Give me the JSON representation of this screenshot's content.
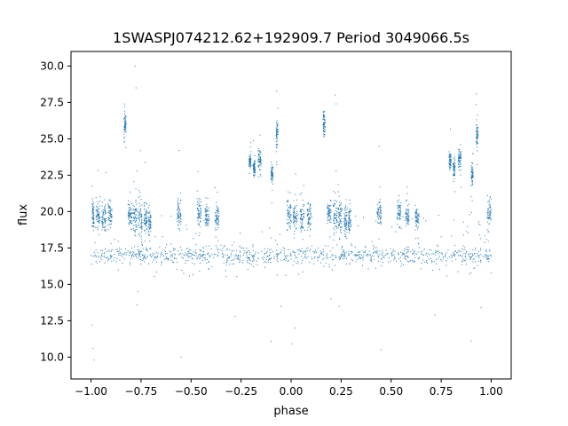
{
  "chart_data": {
    "type": "scatter",
    "title": "1SWASPJ074212.62+192909.7 Period 3049066.5s",
    "xlabel": "phase",
    "ylabel": "flux",
    "xlim": [
      -1.1,
      1.1
    ],
    "ylim": [
      8.5,
      31.0
    ],
    "x_ticks": [
      -1.0,
      -0.75,
      -0.5,
      -0.25,
      0.0,
      0.25,
      0.5,
      0.75,
      1.0
    ],
    "x_tick_labels": [
      "−1.00",
      "−0.75",
      "−0.50",
      "−0.25",
      "0.00",
      "0.25",
      "0.50",
      "0.75",
      "1.00"
    ],
    "y_ticks": [
      10.0,
      12.5,
      15.0,
      17.5,
      20.0,
      22.5,
      25.0,
      27.5,
      30.0
    ],
    "y_tick_labels": [
      "10.0",
      "12.5",
      "15.0",
      "17.5",
      "20.0",
      "22.5",
      "25.0",
      "27.5",
      "30.0"
    ],
    "grid": false,
    "legend": "none",
    "marker_color": "#1f77b4",
    "series": [
      {
        "clusters": [
          {
            "x": [
              -0.995,
              -0.985
            ],
            "y_center": 19.7,
            "y_spread": 0.9
          },
          {
            "x": [
              -0.975,
              -0.955
            ],
            "y_center": 19.8,
            "y_spread": 0.8
          },
          {
            "x": [
              -0.945,
              -0.925
            ],
            "y_center": 19.7,
            "y_spread": 0.9
          },
          {
            "x": [
              -0.915,
              -0.895
            ],
            "y_center": 19.8,
            "y_spread": 0.9
          },
          {
            "x": [
              -0.835,
              -0.825
            ],
            "y_center": 26.0,
            "y_spread": 0.9
          },
          {
            "x": [
              -0.815,
              -0.795
            ],
            "y_center": 19.8,
            "y_spread": 0.8
          },
          {
            "x": [
              -0.79,
              -0.77
            ],
            "y_center": 19.6,
            "y_spread": 1.2
          },
          {
            "x": [
              -0.765,
              -0.745
            ],
            "y_center": 19.5,
            "y_spread": 1.4
          },
          {
            "x": [
              -0.735,
              -0.72
            ],
            "y_center": 19.4,
            "y_spread": 1.0
          },
          {
            "x": [
              -0.715,
              -0.7
            ],
            "y_center": 19.3,
            "y_spread": 0.9
          },
          {
            "x": [
              -0.57,
              -0.55
            ],
            "y_center": 19.9,
            "y_spread": 0.9
          },
          {
            "x": [
              -0.47,
              -0.45
            ],
            "y_center": 19.9,
            "y_spread": 0.8
          },
          {
            "x": [
              -0.43,
              -0.41
            ],
            "y_center": 19.7,
            "y_spread": 0.7
          },
          {
            "x": [
              -0.38,
              -0.36
            ],
            "y_center": 19.6,
            "y_spread": 0.7
          },
          {
            "x": [
              -0.21,
              -0.2
            ],
            "y_center": 23.5,
            "y_spread": 0.5
          },
          {
            "x": [
              -0.19,
              -0.18
            ],
            "y_center": 23.0,
            "y_spread": 0.6
          },
          {
            "x": [
              -0.165,
              -0.15
            ],
            "y_center": 23.6,
            "y_spread": 0.7
          },
          {
            "x": [
              -0.1,
              -0.09
            ],
            "y_center": 22.6,
            "y_spread": 0.7
          },
          {
            "x": [
              -0.075,
              -0.065
            ],
            "y_center": 25.3,
            "y_spread": 0.9
          },
          {
            "x": [
              -0.02,
              0.0
            ],
            "y_center": 19.9,
            "y_spread": 1.0
          },
          {
            "x": [
              0.01,
              0.03
            ],
            "y_center": 19.6,
            "y_spread": 0.9
          },
          {
            "x": [
              0.045,
              0.065
            ],
            "y_center": 19.7,
            "y_spread": 0.9
          },
          {
            "x": [
              0.08,
              0.1
            ],
            "y_center": 19.8,
            "y_spread": 0.9
          },
          {
            "x": [
              0.16,
              0.17
            ],
            "y_center": 26.0,
            "y_spread": 0.9
          },
          {
            "x": [
              0.18,
              0.2
            ],
            "y_center": 19.8,
            "y_spread": 0.8
          },
          {
            "x": [
              0.21,
              0.23
            ],
            "y_center": 19.6,
            "y_spread": 1.2
          },
          {
            "x": [
              0.235,
              0.255
            ],
            "y_center": 19.5,
            "y_spread": 1.4
          },
          {
            "x": [
              0.265,
              0.28
            ],
            "y_center": 19.4,
            "y_spread": 1.0
          },
          {
            "x": [
              0.285,
              0.3
            ],
            "y_center": 19.3,
            "y_spread": 0.9
          },
          {
            "x": [
              0.43,
              0.45
            ],
            "y_center": 19.9,
            "y_spread": 0.9
          },
          {
            "x": [
              0.53,
              0.55
            ],
            "y_center": 19.9,
            "y_spread": 0.8
          },
          {
            "x": [
              0.57,
              0.59
            ],
            "y_center": 19.7,
            "y_spread": 0.7
          },
          {
            "x": [
              0.62,
              0.64
            ],
            "y_center": 19.6,
            "y_spread": 0.7
          },
          {
            "x": [
              0.79,
              0.8
            ],
            "y_center": 23.5,
            "y_spread": 0.5
          },
          {
            "x": [
              0.81,
              0.82
            ],
            "y_center": 23.0,
            "y_spread": 0.6
          },
          {
            "x": [
              0.835,
              0.85
            ],
            "y_center": 23.6,
            "y_spread": 0.7
          },
          {
            "x": [
              0.9,
              0.91
            ],
            "y_center": 22.6,
            "y_spread": 0.7
          },
          {
            "x": [
              0.925,
              0.935
            ],
            "y_center": 25.3,
            "y_spread": 0.9
          },
          {
            "x": [
              0.98,
              1.0
            ],
            "y_center": 19.9,
            "y_spread": 1.0
          }
        ],
        "baseline_band": {
          "x": [
            -1.0,
            1.0
          ],
          "y_center": 17.0,
          "y_spread": 0.6
        },
        "outlier_points": [
          {
            "x": -0.995,
            "y": 12.2
          },
          {
            "x": -0.99,
            "y": 10.6
          },
          {
            "x": -0.985,
            "y": 9.8
          },
          {
            "x": -0.78,
            "y": 30.0
          },
          {
            "x": -0.775,
            "y": 28.5
          },
          {
            "x": -0.77,
            "y": 13.6
          },
          {
            "x": -0.765,
            "y": 14.5
          },
          {
            "x": -0.56,
            "y": 24.2
          },
          {
            "x": -0.55,
            "y": 10.0
          },
          {
            "x": -0.28,
            "y": 12.8
          },
          {
            "x": -0.1,
            "y": 11.1
          },
          {
            "x": -0.05,
            "y": 13.5
          },
          {
            "x": 0.005,
            "y": 10.9
          },
          {
            "x": 0.02,
            "y": 12.0
          },
          {
            "x": 0.2,
            "y": 14.0
          },
          {
            "x": 0.22,
            "y": 28.0
          },
          {
            "x": 0.225,
            "y": 27.4
          },
          {
            "x": 0.24,
            "y": 13.5
          },
          {
            "x": 0.44,
            "y": 24.5
          },
          {
            "x": 0.45,
            "y": 10.5
          },
          {
            "x": 0.72,
            "y": 12.9
          },
          {
            "x": 0.9,
            "y": 11.1
          },
          {
            "x": 0.95,
            "y": 13.4
          },
          {
            "x": 1.0,
            "y": 15.8
          }
        ]
      }
    ]
  }
}
